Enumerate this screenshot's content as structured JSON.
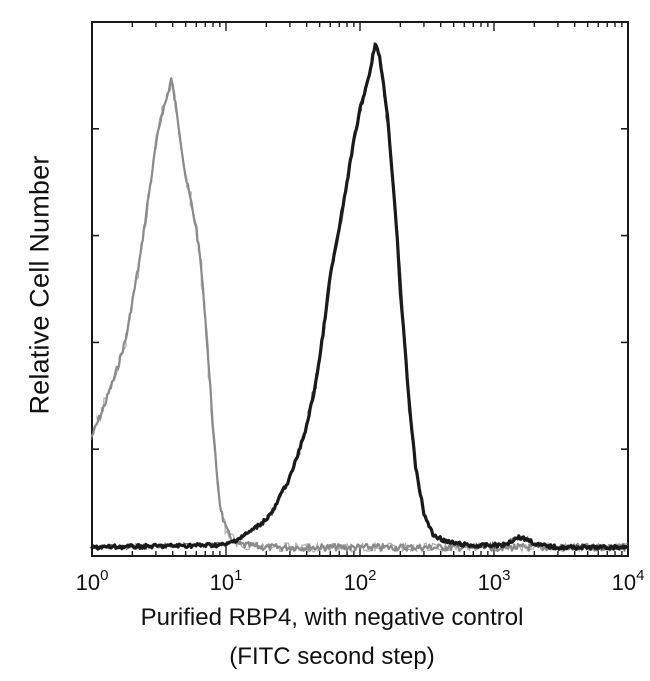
{
  "chart_data": {
    "type": "line",
    "title": "",
    "xlabel": "Purified RBP4, with negative control",
    "xlabel_line2": "(FITC second step)",
    "ylabel": "Relative Cell Number",
    "x_scale": "log",
    "xlim": [
      1,
      10000
    ],
    "ylim": [
      0,
      100
    ],
    "x_ticks": [
      {
        "base": "10",
        "exp": "0"
      },
      {
        "base": "10",
        "exp": "1"
      },
      {
        "base": "10",
        "exp": "2"
      },
      {
        "base": "10",
        "exp": "3"
      },
      {
        "base": "10",
        "exp": "4"
      }
    ],
    "grid": false,
    "legend": "none",
    "series": [
      {
        "role": "negative control",
        "color": "#8a8a8a",
        "x": [
          1.0,
          1.2,
          1.5,
          1.8,
          2.0,
          2.3,
          2.6,
          3.0,
          3.3,
          3.6,
          3.9,
          4.2,
          4.6,
          5.0,
          5.5,
          6.0,
          6.5,
          7.0,
          7.5,
          8.0,
          8.5,
          9.0,
          9.5,
          10.0,
          10.5,
          11.5,
          13,
          20,
          100,
          1000,
          10000
        ],
        "y": [
          22,
          27,
          34,
          41,
          48,
          57,
          67,
          78,
          84,
          87,
          91,
          86,
          79,
          72,
          67,
          62,
          55,
          45,
          34,
          24,
          15,
          9,
          6,
          4,
          3,
          1.5,
          1,
          0.5,
          0.5,
          0.5,
          0.5
        ]
      },
      {
        "role": "purified RBP4",
        "color": "#1a1a1a",
        "x": [
          1,
          10,
          12,
          14,
          16,
          18,
          20,
          23,
          26,
          30,
          35,
          40,
          45,
          50,
          55,
          60,
          70,
          80,
          90,
          100,
          110,
          120,
          130,
          140,
          150,
          160,
          170,
          180,
          190,
          200,
          215,
          230,
          260,
          300,
          350,
          450,
          700,
          1200,
          1500,
          1800,
          2100,
          3000,
          10000
        ],
        "y": [
          0.5,
          1,
          2,
          3,
          4,
          5,
          6,
          8,
          11,
          14,
          19,
          24,
          30,
          37,
          45,
          53,
          62,
          71,
          79,
          85,
          89,
          93,
          98,
          95,
          90,
          84,
          76,
          68,
          60,
          50,
          40,
          30,
          16,
          7,
          3,
          1.5,
          0.8,
          1,
          2.5,
          2,
          1,
          0.5,
          0.5
        ]
      }
    ]
  }
}
